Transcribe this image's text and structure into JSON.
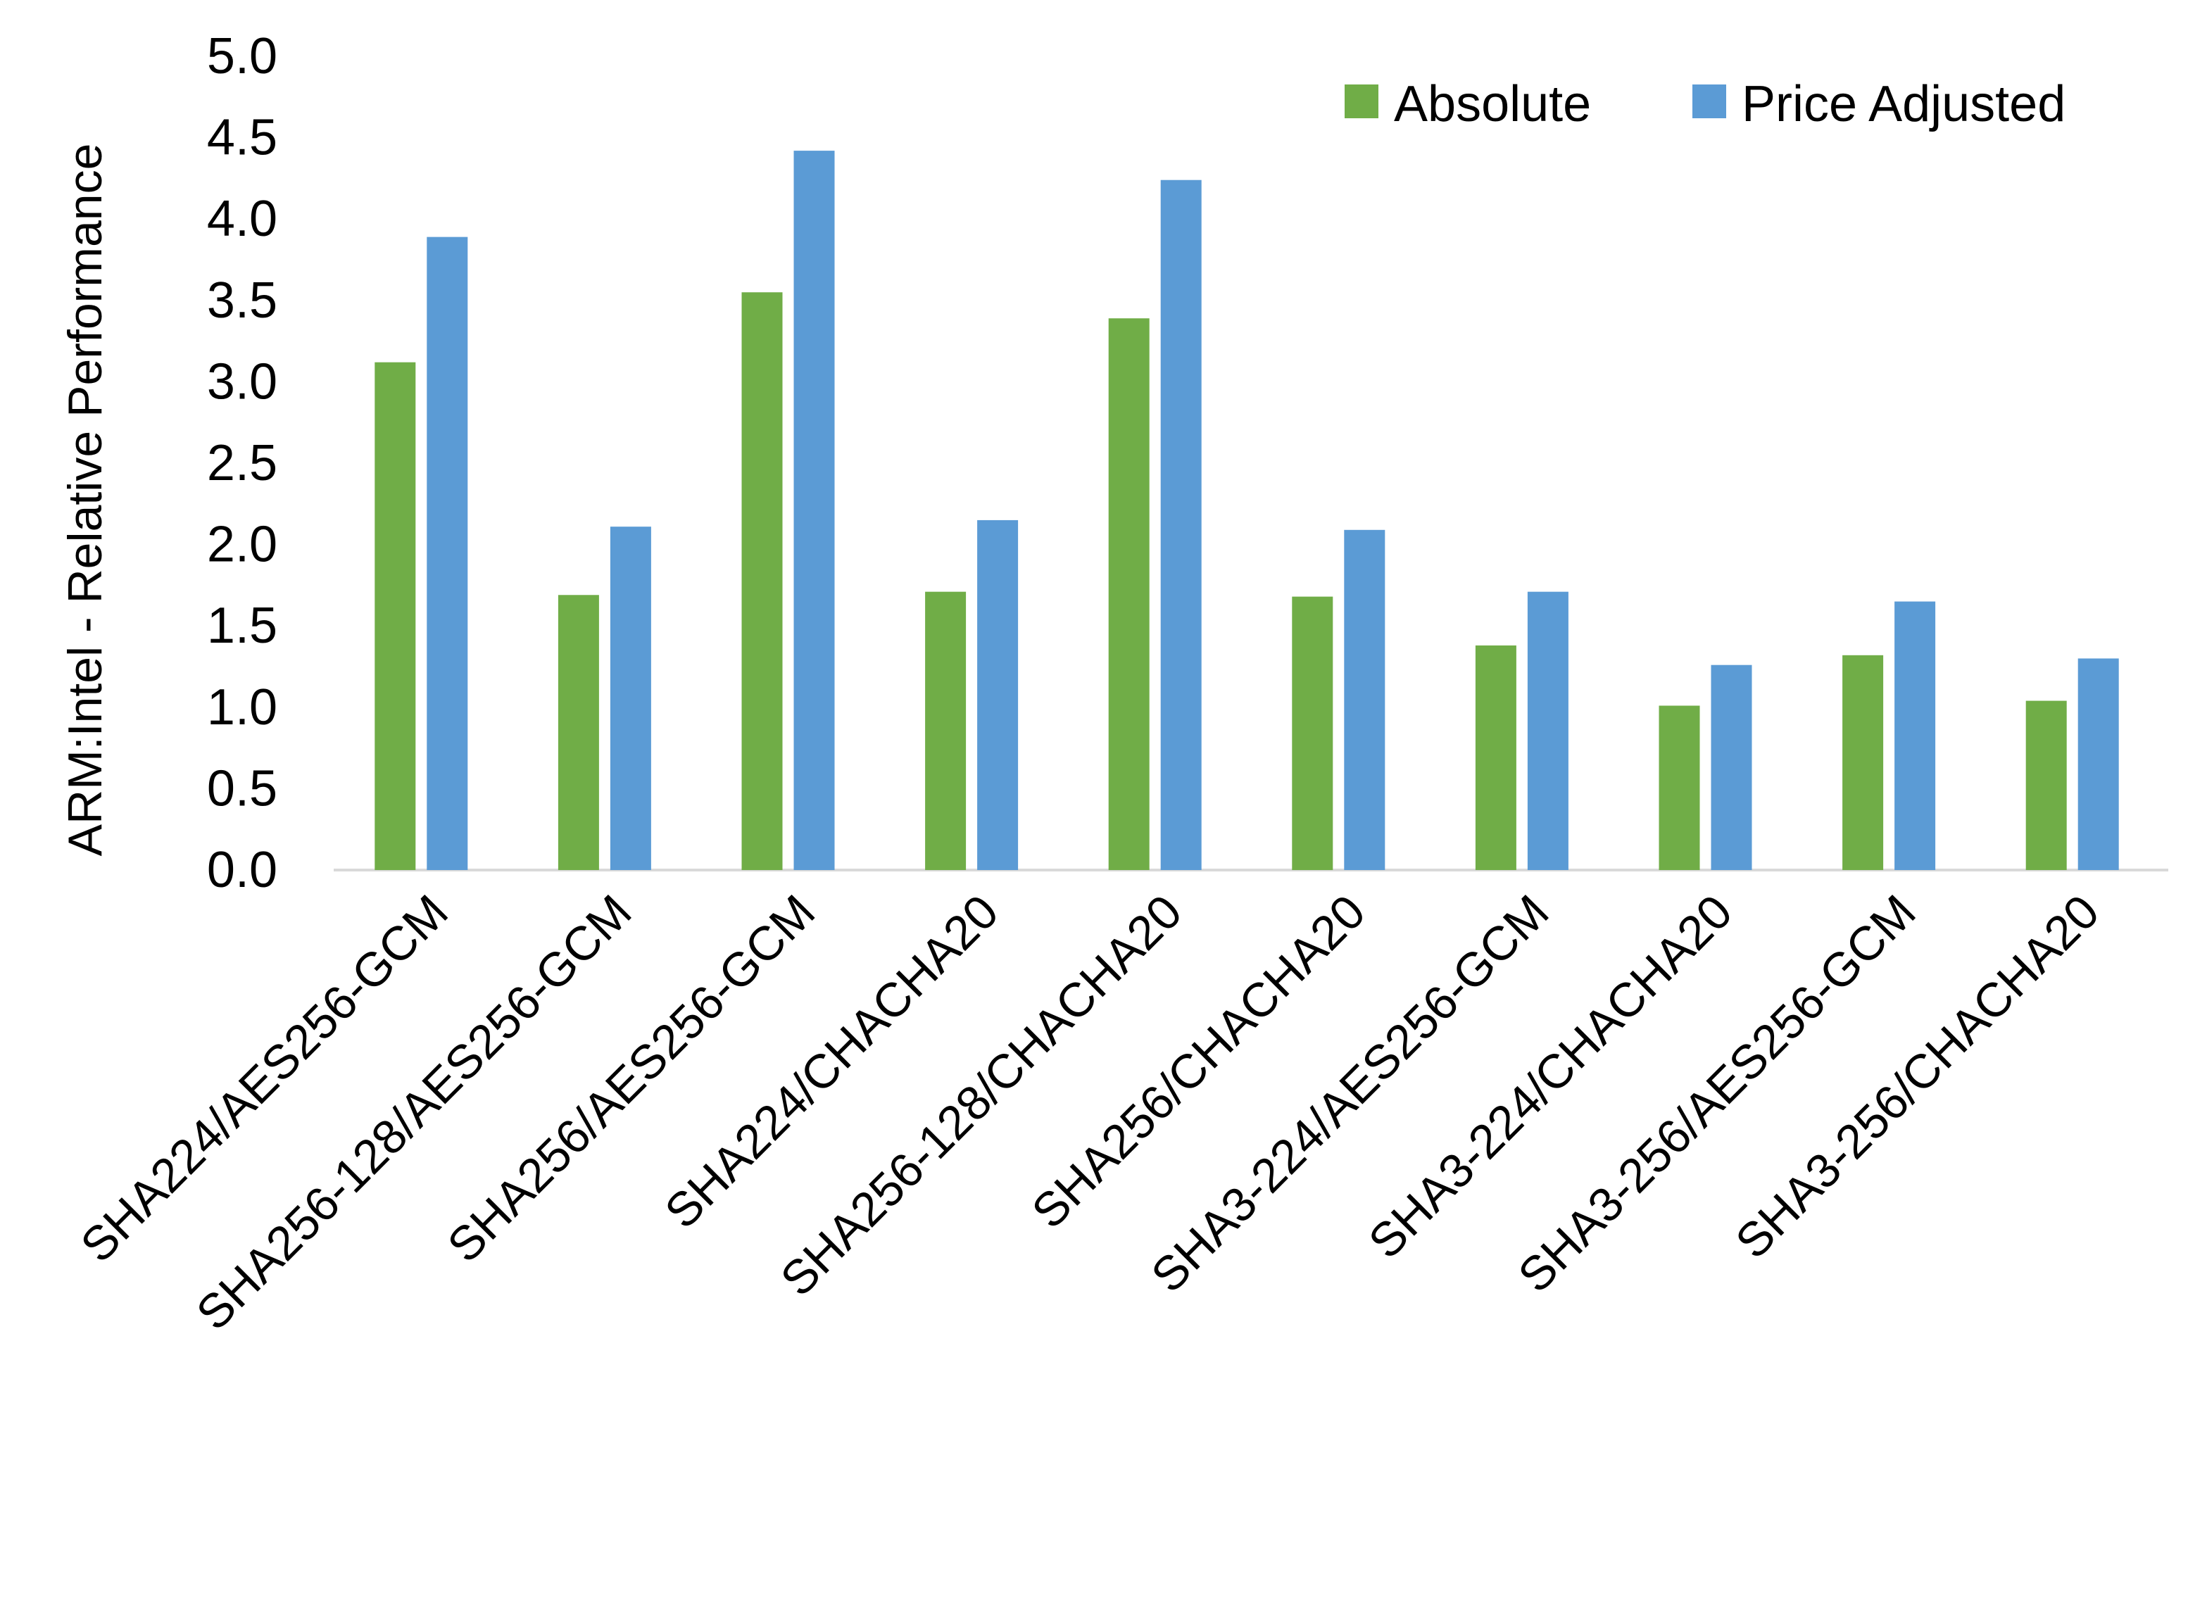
{
  "chart_data": {
    "type": "bar",
    "title": "",
    "xlabel": "",
    "ylabel": "ARM:Intel - Relative Performance",
    "ylim": [
      0,
      5
    ],
    "yticks": [
      "0.0",
      "0.5",
      "1.0",
      "1.5",
      "2.0",
      "2.5",
      "3.0",
      "3.5",
      "4.0",
      "4.5",
      "5.0"
    ],
    "grid": false,
    "legend_position": "top-right",
    "categories": [
      "SHA224/AES256-GCM",
      "SHA256-128/AES256-GCM",
      "SHA256/AES256-GCM",
      "SHA224/CHACHA20",
      "SHA256-128/CHACHA20",
      "SHA256/CHACHA20",
      "SHA3-224/AES256-GCM",
      "SHA3-224/CHACHA20",
      "SHA3-256/AES256-GCM",
      "SHA3-256/CHACHA20"
    ],
    "series": [
      {
        "name": "Absolute",
        "color": "#70AD47",
        "values": [
          3.12,
          1.69,
          3.55,
          1.71,
          3.39,
          1.68,
          1.38,
          1.01,
          1.32,
          1.04
        ]
      },
      {
        "name": "Price Adjusted",
        "color": "#5B9BD5",
        "values": [
          3.89,
          2.11,
          4.42,
          2.15,
          4.24,
          2.09,
          1.71,
          1.26,
          1.65,
          1.3
        ]
      }
    ]
  }
}
